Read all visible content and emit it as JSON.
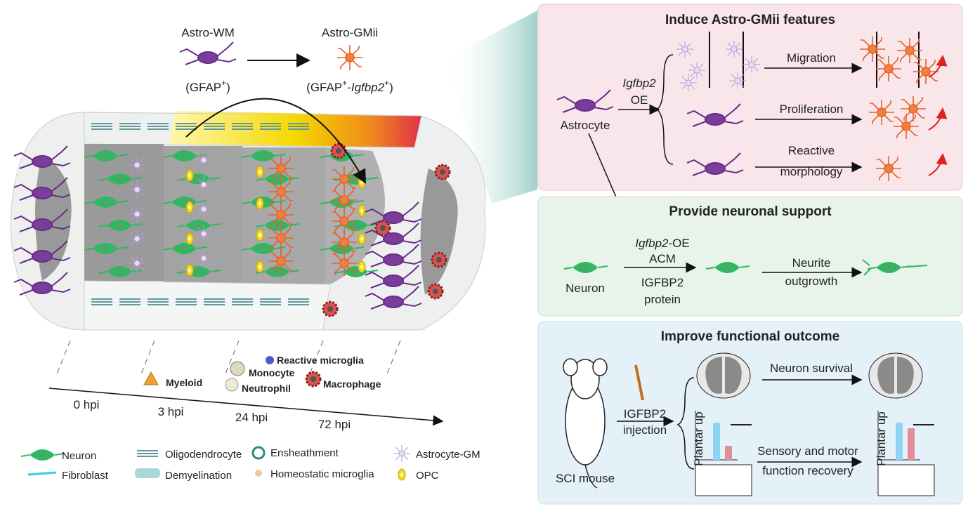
{
  "left": {
    "astro_wm": "Astro-WM",
    "astro_gmii": "Astro-GMii",
    "wm_marker": [
      "(GFAP",
      "+",
      ")"
    ],
    "gmii_marker": [
      "(GFAP",
      "+",
      "-",
      "Igfbp2",
      "+",
      ")"
    ],
    "cells": {
      "myeloid": "Myeloid",
      "monocyte": "Monocyte",
      "neutrophil": "Neutrophil",
      "reactive_microglia": "Reactive microglia",
      "macrophage": "Macrophage"
    },
    "timeline": [
      "0 hpi",
      "3 hpi",
      "24 hpi",
      "72 hpi"
    ],
    "legend": [
      "Neuron",
      "Oligodendrocyte",
      "Ensheathment",
      "Astrocyte-GM",
      "Fibroblast",
      "Demyelination",
      "Homeostatic microglia",
      "OPC"
    ]
  },
  "panel1": {
    "title": "Induce Astro-GMii features",
    "astrocyte": "Astrocyte",
    "oe": [
      "Igfbp2",
      "OE"
    ],
    "migration": "Migration",
    "proliferation": "Proliferation",
    "reactive": [
      "Reactive",
      "morphology"
    ]
  },
  "panel2": {
    "title": "Provide neuronal support",
    "neuron": "Neuron",
    "acm": [
      "Igfbp2",
      "-OE",
      "ACM",
      "IGFBP2",
      "protein"
    ],
    "neurite": [
      "Neurite",
      "outgrowth"
    ]
  },
  "panel3": {
    "title": "Improve functional outcome",
    "mouse": "SCI mouse",
    "injection": [
      "IGFBP2",
      "injection"
    ],
    "survival": "Neuron survival",
    "recovery": [
      "Sensory and motor",
      "function recovery"
    ],
    "plantar": "Plantar up"
  }
}
